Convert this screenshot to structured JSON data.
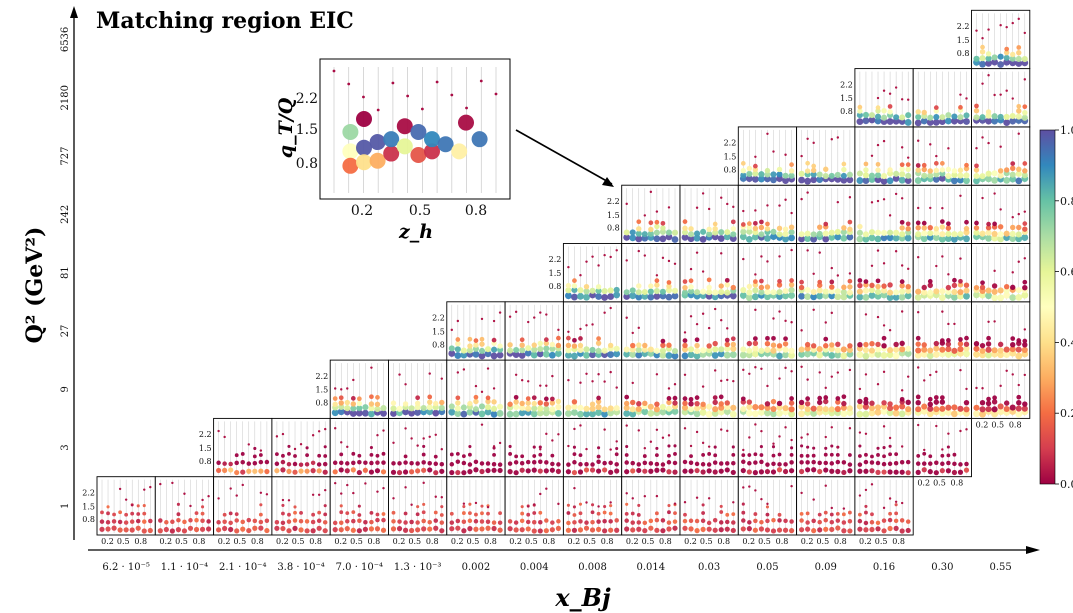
{
  "chart_data": {
    "type": "scatter",
    "title": "Matching region EIC",
    "xlabel": "x_Bj",
    "ylabel": "Q² (GeV²)",
    "x_bins": [
      "6.2 · 10⁻⁵",
      "1.1 · 10⁻⁴",
      "2.1 · 10⁻⁴",
      "3.8 · 10⁻⁴",
      "7.0 · 10⁻⁴",
      "1.3 · 10⁻³",
      "0.002",
      "0.004",
      "0.008",
      "0.014",
      "0.03",
      "0.05",
      "0.09",
      "0.16",
      "0.30",
      "0.55"
    ],
    "q2_bins": [
      "1",
      "3",
      "9",
      "27",
      "81",
      "242",
      "727",
      "2180",
      "6536"
    ],
    "panel_first_x_bin": [
      0,
      2,
      4,
      6,
      8,
      9,
      11,
      13,
      15
    ],
    "panel_last_x_bin": [
      13,
      14,
      15,
      15,
      15,
      15,
      15,
      15,
      15
    ],
    "panel_xaxis": {
      "label": "z_h",
      "ticks": [
        "0.2",
        "0.5",
        "0.8"
      ]
    },
    "panel_yaxis": {
      "label": "q_T/Q",
      "ticks": [
        "0.8",
        "1.5",
        "2.2"
      ]
    },
    "colorbar": {
      "min": 0.0,
      "max": 1.0,
      "ticks": [
        "0.0",
        "0.2",
        "0.4",
        "0.6",
        "0.8",
        "1.0"
      ],
      "colormap": "Spectral"
    },
    "inset": {
      "ylabel": "q_T/Q",
      "xlabel": "z_h",
      "yticks": [
        "0.8",
        "1.5",
        "2.2"
      ],
      "xticks": [
        "0.2",
        "0.5",
        "0.8"
      ],
      "points": [
        {
          "z": 0.12,
          "qt": 0.82,
          "v": 0.72
        },
        {
          "z": 0.12,
          "qt": 0.55,
          "v": 0.5
        },
        {
          "z": 0.12,
          "qt": 0.35,
          "v": 0.2
        },
        {
          "z": 0.2,
          "qt": 0.6,
          "v": 0.98
        },
        {
          "z": 0.2,
          "qt": 1.0,
          "v": 0.0
        },
        {
          "z": 0.2,
          "qt": 0.4,
          "v": 0.4
        },
        {
          "z": 0.28,
          "qt": 0.68,
          "v": 0.98
        },
        {
          "z": 0.28,
          "qt": 0.42,
          "v": 0.3
        },
        {
          "z": 0.36,
          "qt": 0.52,
          "v": 0.08
        },
        {
          "z": 0.36,
          "qt": 0.72,
          "v": 0.92
        },
        {
          "z": 0.44,
          "qt": 0.62,
          "v": 0.6
        },
        {
          "z": 0.44,
          "qt": 0.9,
          "v": 0.02
        },
        {
          "z": 0.52,
          "qt": 0.5,
          "v": 0.15
        },
        {
          "z": 0.52,
          "qt": 0.82,
          "v": 0.95
        },
        {
          "z": 0.6,
          "qt": 0.55,
          "v": 0.08
        },
        {
          "z": 0.6,
          "qt": 0.72,
          "v": 0.9
        },
        {
          "z": 0.68,
          "qt": 0.65,
          "v": 0.93
        },
        {
          "z": 0.76,
          "qt": 0.55,
          "v": 0.45
        },
        {
          "z": 0.8,
          "qt": 0.95,
          "v": 0.02
        },
        {
          "z": 0.88,
          "qt": 0.72,
          "v": 0.93
        }
      ]
    },
    "legend": "colorbar right",
    "grid": false
  }
}
